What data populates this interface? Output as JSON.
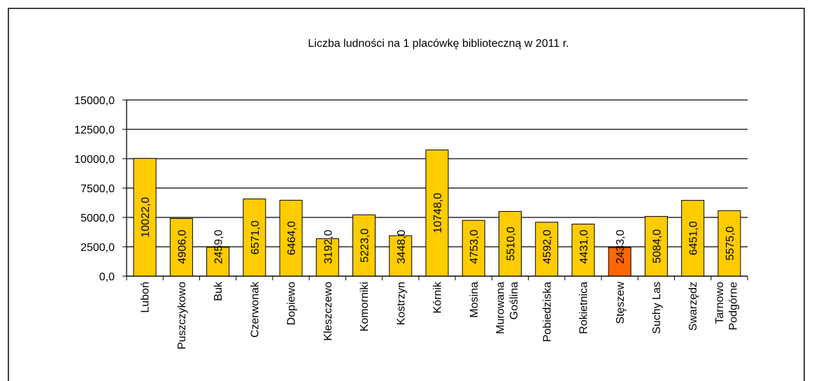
{
  "chart_data": {
    "type": "bar",
    "title": "Liczba ludności na 1 placówkę biblioteczną w 2011 r.",
    "categories": [
      "Luboń",
      "Puszczykowo",
      "Buk",
      "Czerwonak",
      "Dopiewo",
      "Kleszczewo",
      "Komorniki",
      "Kostrzyn",
      "Kórnik",
      "Mosina",
      "Murowana Goślina",
      "Pobiedziska",
      "Rokietnica",
      "Stęszew",
      "Suchy Las",
      "Swarzędz",
      "Tarnowo Podgórne"
    ],
    "values": [
      10022,
      4906,
      2459,
      6571,
      6464,
      3192,
      5223,
      3448,
      10748,
      4753,
      5510,
      4592,
      4431,
      2433,
      5084,
      6451,
      5575
    ],
    "value_labels": [
      "10022,0",
      "4906,0",
      "2459,0",
      "6571,0",
      "6464,0",
      "3192,0",
      "5223,0",
      "3448,0",
      "10748,0",
      "4753,0",
      "5510,0",
      "4592,0",
      "4431,0",
      "2433,0",
      "5084,0",
      "6451,0",
      "5575,0"
    ],
    "colors": [
      "#ffcc00",
      "#ffcc00",
      "#ffcc00",
      "#ffcc00",
      "#ffcc00",
      "#ffcc00",
      "#ffcc00",
      "#ffcc00",
      "#ffcc00",
      "#ffcc00",
      "#ffcc00",
      "#ffcc00",
      "#ffcc00",
      "#ff6600",
      "#ffcc00",
      "#ffcc00",
      "#ffcc00"
    ],
    "ylim": [
      0,
      15000
    ],
    "yticks": [
      {
        "value": 0,
        "label": "0,0"
      },
      {
        "value": 2500,
        "label": "2500,0"
      },
      {
        "value": 5000,
        "label": "5000,0"
      },
      {
        "value": 7500,
        "label": "7500,0"
      },
      {
        "value": 10000,
        "label": "10000,0"
      },
      {
        "value": 12500,
        "label": "12500,0"
      },
      {
        "value": 15000,
        "label": "15000,0"
      }
    ],
    "grid": true
  }
}
